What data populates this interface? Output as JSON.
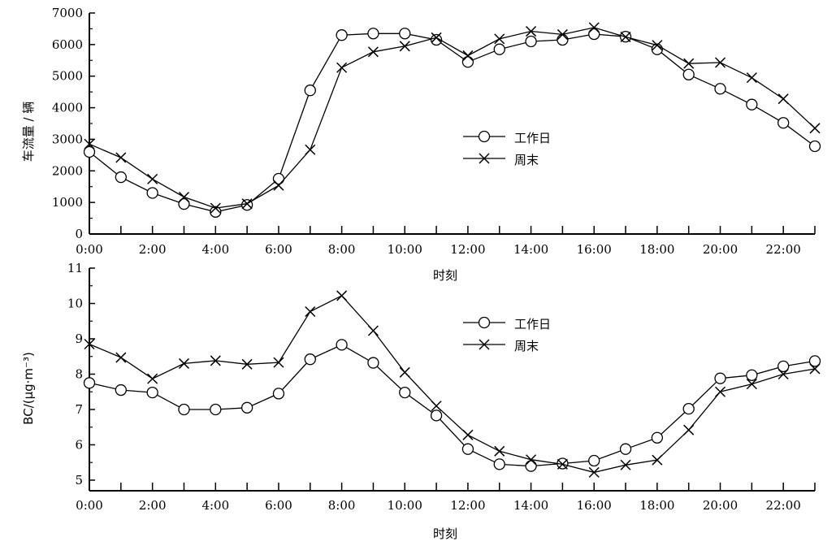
{
  "chart_data": [
    {
      "type": "line",
      "title": "",
      "xlabel": "时刻",
      "ylabel": "车流量 / 辆",
      "x": [
        "0:00",
        "1:00",
        "2:00",
        "3:00",
        "4:00",
        "5:00",
        "6:00",
        "7:00",
        "8:00",
        "9:00",
        "10:00",
        "11:00",
        "12:00",
        "13:00",
        "14:00",
        "15:00",
        "16:00",
        "17:00",
        "18:00",
        "19:00",
        "20:00",
        "21:00",
        "22:00",
        "23:00"
      ],
      "xtick_labels": [
        "0:00",
        "2:00",
        "4:00",
        "6:00",
        "8:00",
        "10:00",
        "12:00",
        "14:00",
        "16:00",
        "18:00",
        "20:00",
        "22:00"
      ],
      "ylim": [
        0,
        7000
      ],
      "yticks": [
        0,
        1000,
        2000,
        3000,
        4000,
        5000,
        6000,
        7000
      ],
      "legend_position": "center-right",
      "grid": false,
      "series": [
        {
          "name": "工作日",
          "marker": "circle",
          "values": [
            2600,
            1800,
            1300,
            950,
            700,
            920,
            1750,
            4550,
            6300,
            6350,
            6350,
            6150,
            5450,
            5850,
            6100,
            6150,
            6330,
            6250,
            5850,
            5050,
            4600,
            4100,
            3520,
            2780
          ]
        },
        {
          "name": "周末",
          "marker": "x",
          "values": [
            2850,
            2420,
            1740,
            1170,
            820,
            960,
            1540,
            2670,
            5270,
            5770,
            5950,
            6220,
            5650,
            6180,
            6420,
            6320,
            6540,
            6240,
            5980,
            5400,
            5430,
            4950,
            4280,
            3350
          ]
        }
      ]
    },
    {
      "type": "line",
      "title": "",
      "xlabel": "时刻",
      "ylabel": "BC/(μg·m⁻³)",
      "x": [
        "0:00",
        "1:00",
        "2:00",
        "3:00",
        "4:00",
        "5:00",
        "6:00",
        "7:00",
        "8:00",
        "9:00",
        "10:00",
        "11:00",
        "12:00",
        "13:00",
        "14:00",
        "15:00",
        "16:00",
        "17:00",
        "18:00",
        "19:00",
        "20:00",
        "21:00",
        "22:00",
        "23:00"
      ],
      "xtick_labels": [
        "0:00",
        "2:00",
        "4:00",
        "6:00",
        "8:00",
        "10:00",
        "12:00",
        "14:00",
        "16:00",
        "18:00",
        "20:00",
        "22:00"
      ],
      "ylim": [
        4.7,
        11
      ],
      "yticks": [
        5,
        6,
        7,
        8,
        9,
        10,
        11
      ],
      "legend_position": "center-right",
      "grid": false,
      "series": [
        {
          "name": "工作日",
          "marker": "circle",
          "values": [
            7.75,
            7.55,
            7.48,
            7.0,
            7.0,
            7.05,
            7.45,
            8.42,
            8.83,
            8.32,
            7.48,
            6.83,
            5.88,
            5.45,
            5.4,
            5.47,
            5.55,
            5.88,
            6.2,
            7.02,
            7.88,
            7.97,
            8.22,
            8.37
          ]
        },
        {
          "name": "周末",
          "marker": "x",
          "values": [
            8.85,
            8.47,
            7.87,
            8.3,
            8.38,
            8.28,
            8.33,
            9.77,
            10.22,
            9.23,
            8.05,
            7.1,
            6.28,
            5.82,
            5.58,
            5.45,
            5.22,
            5.43,
            5.57,
            6.42,
            7.5,
            7.72,
            8.0,
            8.15
          ]
        }
      ]
    }
  ]
}
